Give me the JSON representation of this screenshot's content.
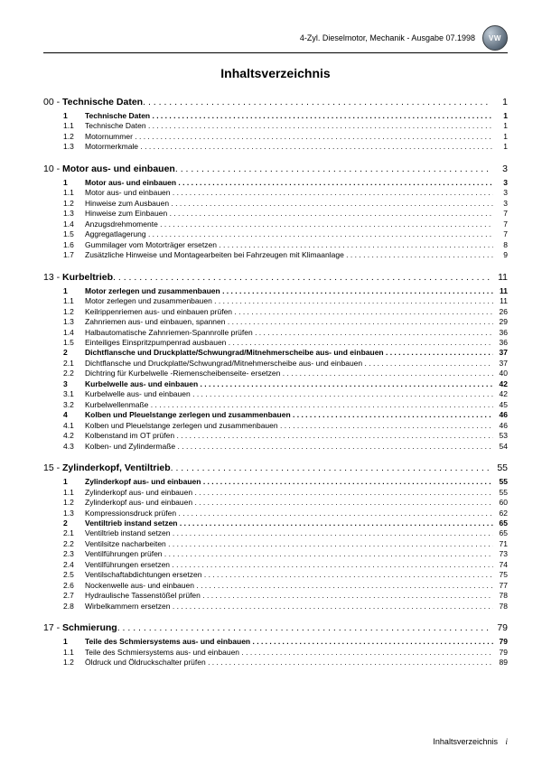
{
  "header": {
    "text": "4-Zyl. Dieselmotor, Mechanik - Ausgabe 07.1998",
    "logo_label": "VW"
  },
  "title": "Inhaltsverzeichnis",
  "footer": {
    "label": "Inhaltsverzeichnis",
    "page": "i"
  },
  "sections": [
    {
      "num": "00",
      "title": "Technische Daten",
      "page": "1",
      "entries": [
        {
          "n": "1",
          "t": "Technische Daten",
          "p": "1",
          "b": true
        },
        {
          "n": "1.1",
          "t": "Technische Daten",
          "p": "1"
        },
        {
          "n": "1.2",
          "t": "Motornummer",
          "p": "1"
        },
        {
          "n": "1.3",
          "t": "Motormerkmale",
          "p": "1"
        }
      ]
    },
    {
      "num": "10",
      "title": "Motor aus- und einbauen",
      "page": "3",
      "entries": [
        {
          "n": "1",
          "t": "Motor aus- und einbauen",
          "p": "3",
          "b": true
        },
        {
          "n": "1.1",
          "t": "Motor aus- und einbauen",
          "p": "3"
        },
        {
          "n": "1.2",
          "t": "Hinweise zum Ausbauen",
          "p": "3"
        },
        {
          "n": "1.3",
          "t": "Hinweise zum Einbauen",
          "p": "7"
        },
        {
          "n": "1.4",
          "t": "Anzugsdrehmomente",
          "p": "7"
        },
        {
          "n": "1.5",
          "t": "Aggregatlagerung",
          "p": "7"
        },
        {
          "n": "1.6",
          "t": "Gummilager vom Motorträger ersetzen",
          "p": "8"
        },
        {
          "n": "1.7",
          "t": "Zusätzliche Hinweise und Montagearbeiten bei Fahrzeugen mit Klimaanlage",
          "p": "9"
        }
      ]
    },
    {
      "num": "13",
      "title": "Kurbeltrieb",
      "page": "11",
      "entries": [
        {
          "n": "1",
          "t": "Motor zerlegen und zusammenbauen",
          "p": "11",
          "b": true
        },
        {
          "n": "1.1",
          "t": "Motor zerlegen und zusammenbauen",
          "p": "11"
        },
        {
          "n": "1.2",
          "t": "Keilrippenriemen aus- und einbauen prüfen",
          "p": "26"
        },
        {
          "n": "1.3",
          "t": "Zahnriemen aus- und einbauen, spannen",
          "p": "29"
        },
        {
          "n": "1.4",
          "t": "Halbautomatische Zahnriemen-Spannrolle prüfen",
          "p": "36"
        },
        {
          "n": "1.5",
          "t": "Einteiliges Einspritzpumpenrad ausbauen",
          "p": "36"
        },
        {
          "n": "2",
          "t": "Dichtflansche und Druckplatte/Schwungrad/Mitnehmerscheibe aus- und einbauen",
          "p": "37",
          "b": true
        },
        {
          "n": "2.1",
          "t": "Dichtflansche und Druckplatte/Schwungrad/Mitnehmerscheibe aus- und einbauen",
          "p": "37"
        },
        {
          "n": "2.2",
          "t": "Dichtring für Kurbelwelle -Riemenscheibenseite- ersetzen",
          "p": "40"
        },
        {
          "n": "3",
          "t": "Kurbelwelle aus- und einbauen",
          "p": "42",
          "b": true
        },
        {
          "n": "3.1",
          "t": "Kurbelwelle aus- und einbauen",
          "p": "42"
        },
        {
          "n": "3.2",
          "t": "Kurbelwellenmaße",
          "p": "45"
        },
        {
          "n": "4",
          "t": "Kolben und Pleuelstange zerlegen und zusammenbauen",
          "p": "46",
          "b": true
        },
        {
          "n": "4.1",
          "t": "Kolben und Pleuelstange zerlegen und zusammenbauen",
          "p": "46"
        },
        {
          "n": "4.2",
          "t": "Kolbenstand im OT prüfen",
          "p": "53"
        },
        {
          "n": "4.3",
          "t": "Kolben- und Zylindermaße",
          "p": "54"
        }
      ]
    },
    {
      "num": "15",
      "title": "Zylinderkopf, Ventiltrieb",
      "page": "55",
      "entries": [
        {
          "n": "1",
          "t": "Zylinderkopf aus- und einbauen",
          "p": "55",
          "b": true
        },
        {
          "n": "1.1",
          "t": "Zylinderkopf aus- und einbauen",
          "p": "55"
        },
        {
          "n": "1.2",
          "t": "Zylinderkopf aus- und einbauen",
          "p": "60"
        },
        {
          "n": "1.3",
          "t": "Kompressionsdruck prüfen",
          "p": "62"
        },
        {
          "n": "2",
          "t": "Ventiltrieb instand setzen",
          "p": "65",
          "b": true
        },
        {
          "n": "2.1",
          "t": "Ventiltrieb instand setzen",
          "p": "65"
        },
        {
          "n": "2.2",
          "t": "Ventilsitze nacharbeiten",
          "p": "71"
        },
        {
          "n": "2.3",
          "t": "Ventilführungen prüfen",
          "p": "73"
        },
        {
          "n": "2.4",
          "t": "Ventilführungen ersetzen",
          "p": "74"
        },
        {
          "n": "2.5",
          "t": "Ventilschaftabdichtungen ersetzen",
          "p": "75"
        },
        {
          "n": "2.6",
          "t": "Nockenwelle aus- und einbauen",
          "p": "77"
        },
        {
          "n": "2.7",
          "t": "Hydraulische Tassenstößel prüfen",
          "p": "78"
        },
        {
          "n": "2.8",
          "t": "Wirbelkammern ersetzen",
          "p": "78"
        }
      ]
    },
    {
      "num": "17",
      "title": "Schmierung",
      "page": "79",
      "entries": [
        {
          "n": "1",
          "t": "Teile des Schmiersystems aus- und einbauen",
          "p": "79",
          "b": true
        },
        {
          "n": "1.1",
          "t": "Teile des Schmiersystems aus- und einbauen",
          "p": "79"
        },
        {
          "n": "1.2",
          "t": "Öldruck und Öldruckschalter prüfen",
          "p": "89"
        }
      ]
    }
  ]
}
